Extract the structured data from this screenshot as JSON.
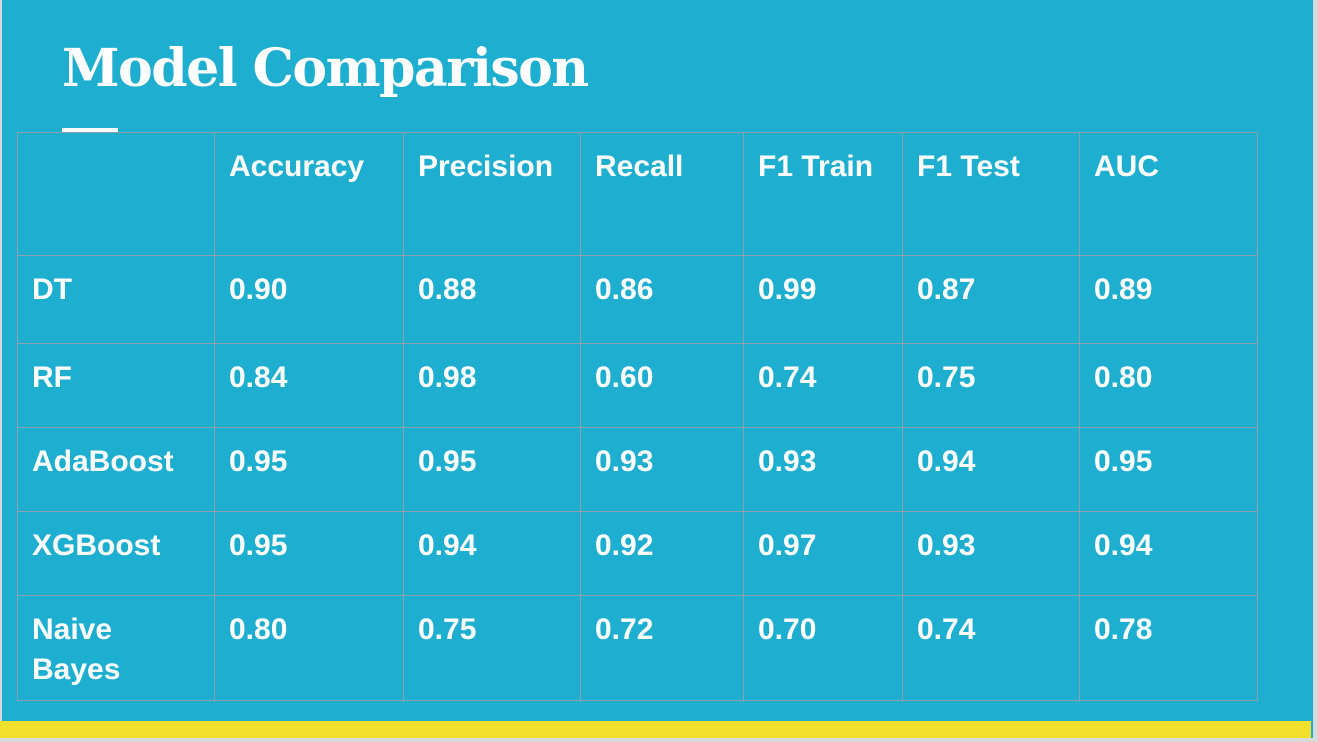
{
  "slide": {
    "title": "Model Comparison",
    "colors": {
      "background": "#1eaed0",
      "text": "#ffffff",
      "accent_bar": "#f3e02c",
      "grid": "#8fa0a8"
    },
    "table": {
      "headers": [
        "",
        "Accuracy",
        "Precision",
        "Recall",
        "F1 Train",
        "F1 Test",
        "AUC"
      ],
      "rows": [
        {
          "model": "DT",
          "values": [
            "0.90",
            "0.88",
            "0.86",
            "0.99",
            "0.87",
            "0.89"
          ]
        },
        {
          "model": "RF",
          "values": [
            "0.84",
            "0.98",
            "0.60",
            "0.74",
            "0.75",
            "0.80"
          ]
        },
        {
          "model": "AdaBoost",
          "values": [
            "0.95",
            "0.95",
            "0.93",
            "0.93",
            "0.94",
            "0.95"
          ]
        },
        {
          "model": "XGBoost",
          "values": [
            "0.95",
            "0.94",
            "0.92",
            "0.97",
            "0.93",
            "0.94"
          ]
        },
        {
          "model": "Naive Bayes",
          "values": [
            "0.80",
            "0.75",
            "0.72",
            "0.70",
            "0.74",
            "0.78"
          ]
        }
      ]
    }
  }
}
